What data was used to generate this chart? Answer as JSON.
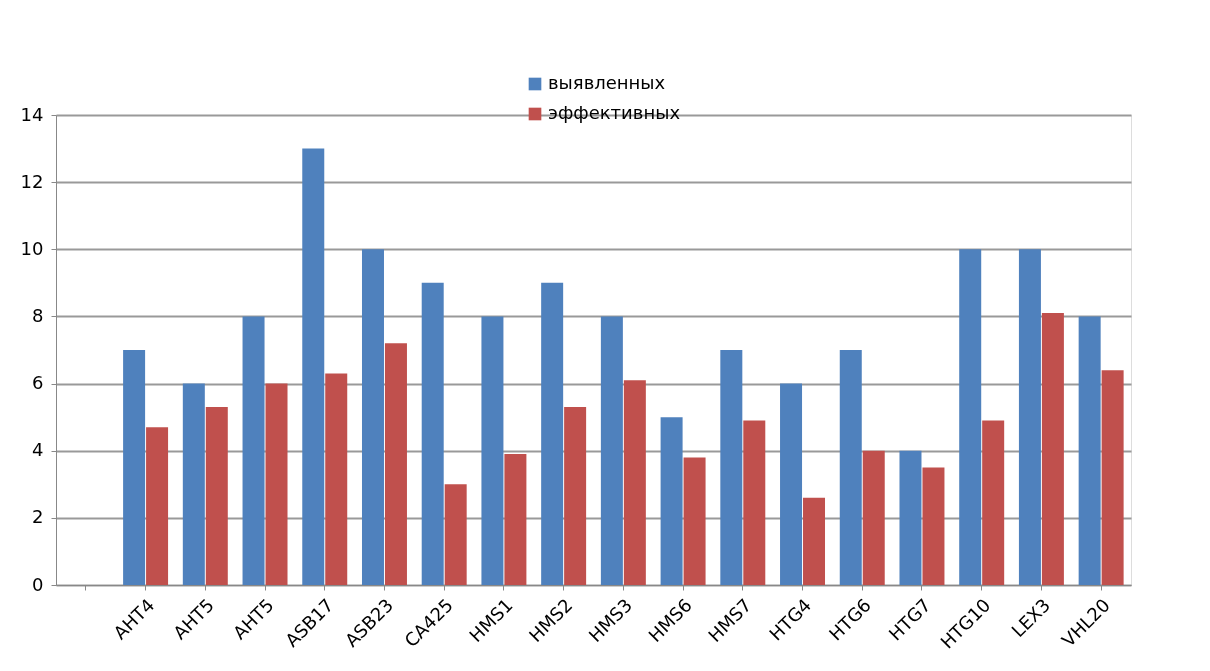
{
  "chart_data": {
    "type": "bar",
    "categories": [
      null,
      "AHT4",
      "AHT5",
      "AHT5",
      "ASB17",
      "ASB23",
      "CA425",
      "HMS1",
      "HMS2",
      "HMS3",
      "HMS6",
      "HMS7",
      "HTG4",
      "HTG6",
      "HTG7",
      "HTG10",
      "LEX3",
      "VHL20"
    ],
    "series": [
      {
        "name": "выявленных",
        "color": "#4f81bd",
        "values": [
          null,
          7,
          6,
          8,
          13,
          10,
          9,
          8,
          9,
          8,
          5,
          7,
          6,
          7,
          4,
          10,
          10,
          8
        ]
      },
      {
        "name": "эффективных",
        "color": "#c0504d",
        "values": [
          null,
          4.7,
          5.3,
          6.0,
          6.3,
          7.2,
          3.0,
          3.9,
          5.3,
          6.1,
          3.8,
          4.9,
          2.6,
          4.0,
          3.5,
          4.9,
          8.1,
          6.4
        ]
      }
    ],
    "ylim": [
      0,
      14
    ],
    "yticks": [
      0,
      2,
      4,
      6,
      8,
      10,
      12,
      14
    ],
    "grid": "y",
    "legend": "top"
  }
}
